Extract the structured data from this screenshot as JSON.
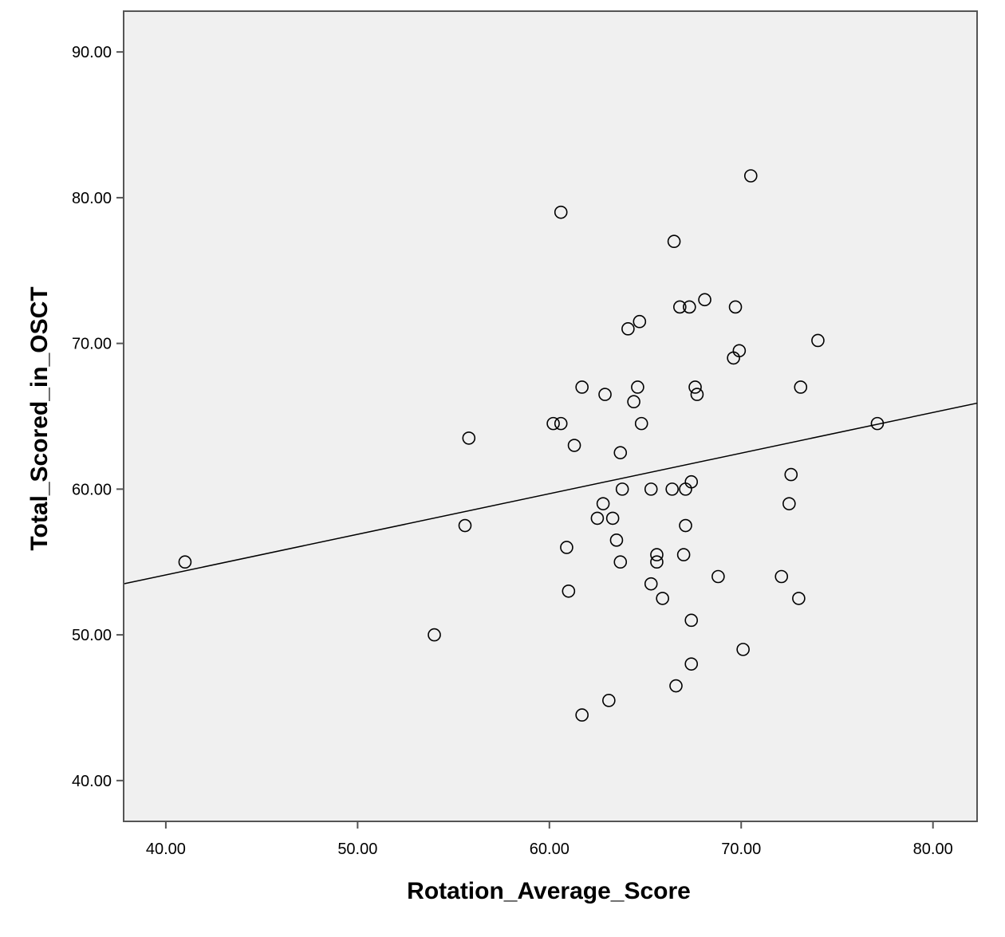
{
  "chart_data": {
    "type": "scatter",
    "xlabel": "Rotation_Average_Score",
    "ylabel": "Total_Scored_in_OSCT",
    "xlim": [
      37.8,
      82.3
    ],
    "ylim": [
      37.2,
      92.8
    ],
    "xticks": [
      "40.00",
      "50.00",
      "60.00",
      "70.00",
      "80.00"
    ],
    "yticks": [
      "40.00",
      "50.00",
      "60.00",
      "70.00",
      "80.00",
      "90.00"
    ],
    "grid": false,
    "legend": "none",
    "plot_background": "#f0f0f0",
    "marker": "open-circle",
    "fit_line": {
      "type": "linear",
      "points": [
        [
          37.8,
          53.5
        ],
        [
          82.3,
          65.9
        ]
      ]
    },
    "points": [
      [
        41.0,
        55.0
      ],
      [
        54.0,
        50.0
      ],
      [
        55.6,
        57.5
      ],
      [
        55.8,
        63.5
      ],
      [
        60.2,
        64.5
      ],
      [
        60.6,
        64.5
      ],
      [
        60.6,
        79.0
      ],
      [
        60.9,
        56.0
      ],
      [
        61.0,
        53.0
      ],
      [
        61.3,
        63.0
      ],
      [
        61.7,
        67.0
      ],
      [
        61.7,
        44.5
      ],
      [
        62.5,
        58.0
      ],
      [
        62.8,
        59.0
      ],
      [
        62.9,
        66.5
      ],
      [
        63.1,
        45.5
      ],
      [
        63.3,
        58.0
      ],
      [
        63.5,
        56.5
      ],
      [
        63.7,
        62.5
      ],
      [
        63.7,
        55.0
      ],
      [
        63.8,
        60.0
      ],
      [
        64.1,
        71.0
      ],
      [
        64.4,
        66.0
      ],
      [
        64.6,
        67.0
      ],
      [
        64.7,
        71.5
      ],
      [
        64.8,
        64.5
      ],
      [
        65.3,
        60.0
      ],
      [
        65.3,
        53.5
      ],
      [
        65.6,
        55.5
      ],
      [
        65.6,
        55.0
      ],
      [
        65.9,
        52.5
      ],
      [
        66.4,
        60.0
      ],
      [
        66.5,
        77.0
      ],
      [
        66.6,
        46.5
      ],
      [
        66.8,
        72.5
      ],
      [
        67.0,
        55.5
      ],
      [
        67.1,
        57.5
      ],
      [
        67.1,
        60.0
      ],
      [
        67.3,
        72.5
      ],
      [
        67.4,
        51.0
      ],
      [
        67.4,
        48.0
      ],
      [
        67.4,
        60.5
      ],
      [
        67.6,
        67.0
      ],
      [
        67.7,
        66.5
      ],
      [
        68.1,
        73.0
      ],
      [
        68.8,
        54.0
      ],
      [
        69.6,
        69.0
      ],
      [
        69.7,
        72.5
      ],
      [
        69.9,
        69.5
      ],
      [
        70.1,
        49.0
      ],
      [
        70.5,
        81.5
      ],
      [
        72.1,
        54.0
      ],
      [
        72.5,
        59.0
      ],
      [
        72.6,
        61.0
      ],
      [
        73.0,
        52.5
      ],
      [
        73.1,
        67.0
      ],
      [
        74.0,
        70.2
      ],
      [
        77.1,
        64.5
      ]
    ]
  }
}
